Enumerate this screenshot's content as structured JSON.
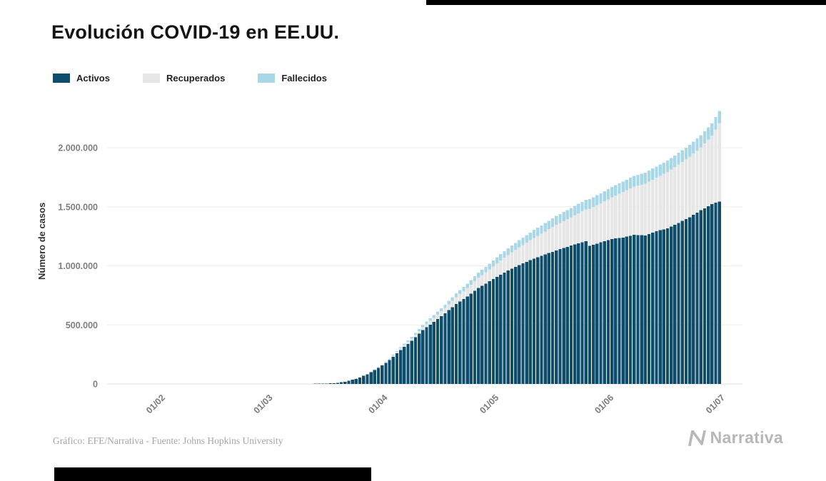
{
  "chart_data": {
    "type": "bar",
    "stacked": true,
    "title": "Evolución COVID-19 en EE.UU.",
    "xlabel": "",
    "ylabel": "Número de casos",
    "x_ticks": [
      "01/02",
      "01/03",
      "01/04",
      "01/05",
      "01/06",
      "01/07"
    ],
    "y_ticks": [
      0,
      500000,
      1000000,
      1500000,
      2000000
    ],
    "y_tick_labels": [
      "0",
      "500.000",
      "1.000.000",
      "1.500.000",
      "2.000.000"
    ],
    "ylim": [
      0,
      2400000
    ],
    "grid": "horizontal-only",
    "legend_position": "top-left",
    "x_axis_note": "barras diarias desde 22/01/2020 hasta 29/06/2020",
    "series": [
      {
        "name": "Activos",
        "field": "activos",
        "color": "#0f4d6d"
      },
      {
        "name": "Recuperados",
        "field": "recuperados",
        "color": "#e6e6e6"
      },
      {
        "name": "Fallecidos",
        "field": "fallecidos",
        "color": "#a8d7e8"
      }
    ],
    "points": [
      {
        "date": "22/01",
        "activos": 1,
        "recuperados": 0,
        "fallecidos": 0
      },
      {
        "date": "01/02",
        "activos": 7,
        "recuperados": 0,
        "fallecidos": 0
      },
      {
        "date": "10/02",
        "activos": 11,
        "recuperados": 1,
        "fallecidos": 0
      },
      {
        "date": "20/02",
        "activos": 12,
        "recuperados": 3,
        "fallecidos": 0
      },
      {
        "date": "01/03",
        "activos": 62,
        "recuperados": 7,
        "fallecidos": 1
      },
      {
        "date": "05/03",
        "activos": 200,
        "recuperados": 10,
        "fallecidos": 12
      },
      {
        "date": "08/03",
        "activos": 495,
        "recuperados": 15,
        "fallecidos": 22
      },
      {
        "date": "11/03",
        "activos": 1200,
        "recuperados": 30,
        "fallecidos": 38
      },
      {
        "date": "14/03",
        "activos": 2650,
        "recuperados": 60,
        "fallecidos": 58
      },
      {
        "date": "17/03",
        "activos": 6200,
        "recuperados": 110,
        "fallecidos": 110
      },
      {
        "date": "20/03",
        "activos": 18600,
        "recuperados": 180,
        "fallecidos": 265
      },
      {
        "date": "23/03",
        "activos": 43000,
        "recuperados": 350,
        "fallecidos": 555
      },
      {
        "date": "26/03",
        "activos": 81000,
        "recuperados": 900,
        "fallecidos": 1210
      },
      {
        "date": "29/03",
        "activos": 137000,
        "recuperados": 4560,
        "fallecidos": 2490
      },
      {
        "date": "01/04",
        "activos": 201000,
        "recuperados": 8900,
        "fallecidos": 4760
      },
      {
        "date": "04/04",
        "activos": 288000,
        "recuperados": 14700,
        "fallecidos": 8500
      },
      {
        "date": "07/04",
        "activos": 365000,
        "recuperados": 19600,
        "fallecidos": 12900
      },
      {
        "date": "10/04",
        "activos": 455000,
        "recuperados": 25400,
        "fallecidos": 18700
      },
      {
        "date": "13/04",
        "activos": 527000,
        "recuperados": 32900,
        "fallecidos": 23600
      },
      {
        "date": "16/04",
        "activos": 599000,
        "recuperados": 43500,
        "fallecidos": 28300
      },
      {
        "date": "19/04",
        "activos": 676000,
        "recuperados": 58500,
        "fallecidos": 33300
      },
      {
        "date": "22/04",
        "activos": 741000,
        "recuperados": 70300,
        "fallecidos": 38200
      },
      {
        "date": "25/04",
        "activos": 812000,
        "recuperados": 87000,
        "fallecidos": 43000
      },
      {
        "date": "28/04",
        "activos": 869000,
        "recuperados": 100400,
        "fallecidos": 47700
      },
      {
        "date": "01/05",
        "activos": 926000,
        "recuperados": 120700,
        "fallecidos": 53500
      },
      {
        "date": "04/05",
        "activos": 976000,
        "recuperados": 138000,
        "fallecidos": 58400
      },
      {
        "date": "07/05",
        "activos": 1021000,
        "recuperados": 155700,
        "fallecidos": 63100
      },
      {
        "date": "10/05",
        "activos": 1061000,
        "recuperados": 175400,
        "fallecidos": 67400
      },
      {
        "date": "13/05",
        "activos": 1096000,
        "recuperados": 195300,
        "fallecidos": 71000
      },
      {
        "date": "16/05",
        "activos": 1131000,
        "recuperados": 216200,
        "fallecidos": 74600
      },
      {
        "date": "19/05",
        "activos": 1161000,
        "recuperados": 234000,
        "fallecidos": 77400
      },
      {
        "date": "22/05",
        "activos": 1191000,
        "recuperados": 253800,
        "fallecidos": 80000
      },
      {
        "date": "24/05",
        "activos": 1210000,
        "recuperados": 267000,
        "fallecidos": 81500
      },
      {
        "date": "25/05",
        "activos": 1168000,
        "recuperados": 315000,
        "fallecidos": 82300
      },
      {
        "date": "28/05",
        "activos": 1198000,
        "recuperados": 331000,
        "fallecidos": 84800
      },
      {
        "date": "31/05",
        "activos": 1228000,
        "recuperados": 352000,
        "fallecidos": 87000
      },
      {
        "date": "03/06",
        "activos": 1240000,
        "recuperados": 384000,
        "fallecidos": 89200
      },
      {
        "date": "06/06",
        "activos": 1262000,
        "recuperados": 408000,
        "fallecidos": 91200
      },
      {
        "date": "09/06",
        "activos": 1258000,
        "recuperados": 437000,
        "fallecidos": 93000
      },
      {
        "date": "12/06",
        "activos": 1292000,
        "recuperados": 454000,
        "fallecidos": 95000
      },
      {
        "date": "15/06",
        "activos": 1318000,
        "recuperados": 476000,
        "fallecidos": 96600
      },
      {
        "date": "18/06",
        "activos": 1364000,
        "recuperados": 494000,
        "fallecidos": 98300
      },
      {
        "date": "21/06",
        "activos": 1412000,
        "recuperados": 512000,
        "fallecidos": 99800
      },
      {
        "date": "24/06",
        "activos": 1470000,
        "recuperados": 533000,
        "fallecidos": 101500
      },
      {
        "date": "27/06",
        "activos": 1522000,
        "recuperados": 580000,
        "fallecidos": 103600
      },
      {
        "date": "29/06",
        "activos": 1545000,
        "recuperados": 662000,
        "fallecidos": 105600
      }
    ]
  },
  "footer": {
    "credit": "Gráfico: EFE/Narrativa - Fuente: Johns Hopkins University",
    "brand": "Narrativa"
  }
}
